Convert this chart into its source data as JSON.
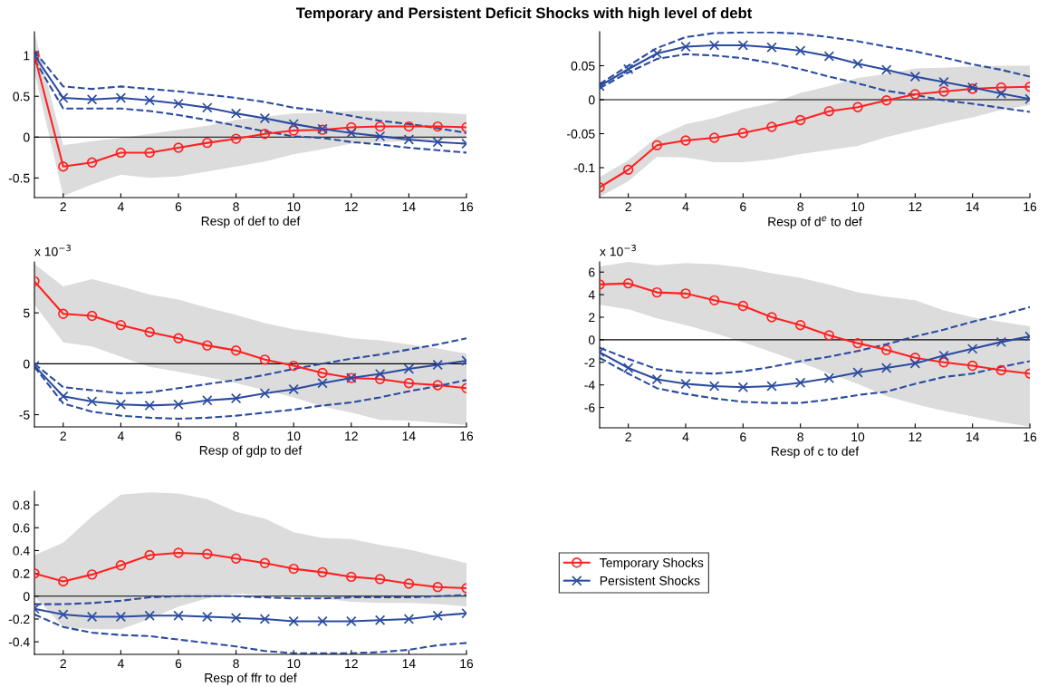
{
  "chart_data": [
    {
      "type": "line",
      "title": "Temporary and Persistent Deficit Shocks with high level of debt",
      "xlabel": "Resp of def to def",
      "x": [
        1,
        2,
        3,
        4,
        5,
        6,
        7,
        8,
        9,
        10,
        11,
        12,
        13,
        14,
        15,
        16
      ],
      "xlim": [
        1,
        16
      ],
      "xticks": [
        2,
        4,
        6,
        8,
        10,
        12,
        14,
        16
      ],
      "ylim": [
        -0.74,
        1.29
      ],
      "yticks": [
        -0.5,
        0,
        0.5,
        1
      ],
      "grid": false,
      "legend": false,
      "ref_lines": [
        {
          "axis": "y",
          "value": 0,
          "color": "#000000"
        }
      ],
      "series": [
        {
          "color": "#ff2020",
          "marker": "circle",
          "values": [
            1,
            -0.36,
            -0.31,
            -0.19,
            -0.19,
            -0.13,
            -0.07,
            -0.02,
            0.04,
            0.08,
            0.09,
            0.12,
            0.13,
            0.13,
            0.13,
            0.12
          ],
          "lower": [
            0.8,
            -0.72,
            -0.58,
            -0.46,
            -0.5,
            -0.48,
            -0.42,
            -0.36,
            -0.3,
            -0.21,
            -0.15,
            -0.08,
            -0.06,
            -0.05,
            -0.04,
            -0.02
          ],
          "upper": [
            1.28,
            -0.1,
            -0.05,
            -0.01,
            0.04,
            0.09,
            0.14,
            0.21,
            0.25,
            0.29,
            0.3,
            0.32,
            0.32,
            0.31,
            0.3,
            0.28
          ]
        },
        {
          "color": "#2b4ba0",
          "marker": "cross",
          "values": [
            1,
            0.48,
            0.46,
            0.48,
            0.45,
            0.41,
            0.36,
            0.29,
            0.23,
            0.16,
            0.1,
            0.05,
            0.01,
            -0.03,
            -0.06,
            -0.08
          ]
        },
        {
          "color": "#2b4ba0",
          "marker": "none",
          "line_style": "dashed",
          "values": [
            1.05,
            0.62,
            0.59,
            0.62,
            0.59,
            0.56,
            0.52,
            0.48,
            0.43,
            0.36,
            0.32,
            0.26,
            0.2,
            0.16,
            0.11,
            0.05
          ]
        },
        {
          "color": "#2b4ba0",
          "marker": "none",
          "line_style": "dashed",
          "values": [
            0.95,
            0.35,
            0.35,
            0.35,
            0.32,
            0.27,
            0.21,
            0.14,
            0.07,
            0.01,
            -0.01,
            -0.06,
            -0.09,
            -0.13,
            -0.16,
            -0.19
          ]
        }
      ]
    },
    {
      "type": "line",
      "xlabel": "Resp of d$^{e}$ to def",
      "x": [
        1,
        2,
        3,
        4,
        5,
        6,
        7,
        8,
        9,
        10,
        11,
        12,
        13,
        14,
        15,
        16
      ],
      "xlim": [
        1,
        16
      ],
      "xticks": [
        2,
        4,
        6,
        8,
        10,
        12,
        14,
        16
      ],
      "ylim": [
        -0.144,
        0.1
      ],
      "yticks": [
        -0.1,
        -0.05,
        0,
        0.05
      ],
      "grid": false,
      "legend": false,
      "ref_lines": [
        {
          "axis": "y",
          "value": 0,
          "color": "#000000"
        }
      ],
      "series": [
        {
          "color": "#ff2020",
          "marker": "circle",
          "values": [
            -0.129,
            -0.103,
            -0.067,
            -0.06,
            -0.056,
            -0.049,
            -0.04,
            -0.03,
            -0.017,
            -0.011,
            -0.001,
            0.008,
            0.012,
            0.016,
            0.018,
            0.019
          ],
          "lower": [
            -0.143,
            -0.12,
            -0.084,
            -0.085,
            -0.092,
            -0.092,
            -0.088,
            -0.08,
            -0.074,
            -0.068,
            -0.055,
            -0.045,
            -0.035,
            -0.026,
            -0.015,
            -0.008
          ],
          "upper": [
            -0.114,
            -0.089,
            -0.055,
            -0.036,
            -0.027,
            -0.014,
            -0.005,
            0.01,
            0.02,
            0.032,
            0.038,
            0.046,
            0.047,
            0.049,
            0.05,
            0.05
          ]
        },
        {
          "color": "#2b4ba0",
          "marker": "cross",
          "values": [
            0.02,
            0.045,
            0.068,
            0.078,
            0.08,
            0.08,
            0.077,
            0.072,
            0.064,
            0.053,
            0.044,
            0.034,
            0.026,
            0.018,
            0.009,
            0.001
          ]
        },
        {
          "color": "#2b4ba0",
          "marker": "none",
          "line_style": "dashed",
          "values": [
            0.023,
            0.05,
            0.076,
            0.092,
            0.098,
            0.099,
            0.099,
            0.097,
            0.092,
            0.086,
            0.078,
            0.071,
            0.062,
            0.052,
            0.044,
            0.034
          ]
        },
        {
          "color": "#2b4ba0",
          "marker": "none",
          "line_style": "dashed",
          "values": [
            0.017,
            0.04,
            0.06,
            0.067,
            0.065,
            0.061,
            0.054,
            0.045,
            0.034,
            0.024,
            0.013,
            0.007,
            -0.001,
            -0.006,
            -0.012,
            -0.018
          ]
        }
      ]
    },
    {
      "type": "line",
      "xlabel": "Resp of gdp to def",
      "annotations": [
        "x 10$^{−3}$"
      ],
      "x": [
        1,
        2,
        3,
        4,
        5,
        6,
        7,
        8,
        9,
        10,
        11,
        12,
        13,
        14,
        15,
        16
      ],
      "xlim": [
        1,
        16
      ],
      "xticks": [
        2,
        4,
        6,
        8,
        10,
        12,
        14,
        16
      ],
      "ylim": [
        -6.2,
        10
      ],
      "yticks": [
        -5,
        0,
        5
      ],
      "grid": false,
      "legend": false,
      "ref_lines": [
        {
          "axis": "y",
          "value": 0,
          "color": "#000000"
        }
      ],
      "series": [
        {
          "color": "#ff2020",
          "marker": "circle",
          "values": [
            8.1,
            4.9,
            4.7,
            3.8,
            3.1,
            2.5,
            1.8,
            1.3,
            0.4,
            -0.2,
            -0.9,
            -1.4,
            -1.5,
            -1.9,
            -2.1,
            -2.4
          ],
          "lower": [
            5.8,
            2.1,
            1.7,
            0.7,
            -0.3,
            -0.8,
            -1.3,
            -1.9,
            -2.6,
            -3.3,
            -4.2,
            -4.8,
            -5.5,
            -5.6,
            -5.8,
            -6.0
          ],
          "upper": [
            9.8,
            7.6,
            8.3,
            7.6,
            6.8,
            6.3,
            5.5,
            4.8,
            4.0,
            3.4,
            3.0,
            2.5,
            2.3,
            1.9,
            1.5,
            1.0
          ]
        },
        {
          "color": "#2b4ba0",
          "marker": "cross",
          "values": [
            -0.2,
            -3.2,
            -3.7,
            -4.0,
            -4.1,
            -4.0,
            -3.6,
            -3.4,
            -2.9,
            -2.5,
            -1.9,
            -1.4,
            -1.0,
            -0.5,
            -0.1,
            0.3
          ]
        },
        {
          "color": "#2b4ba0",
          "marker": "none",
          "line_style": "dashed",
          "values": [
            0,
            -2.3,
            -2.6,
            -2.9,
            -2.8,
            -2.4,
            -2.0,
            -1.6,
            -1.1,
            -0.5,
            0,
            0.5,
            0.9,
            1.4,
            1.9,
            2.5
          ]
        },
        {
          "color": "#2b4ba0",
          "marker": "none",
          "line_style": "dashed",
          "values": [
            -0.3,
            -3.9,
            -4.7,
            -5.1,
            -5.3,
            -5.4,
            -5.3,
            -5.1,
            -4.8,
            -4.5,
            -4.1,
            -3.8,
            -3.3,
            -2.7,
            -2.2,
            -1.6
          ]
        }
      ]
    },
    {
      "type": "line",
      "xlabel": "Resp of c to def",
      "annotations": [
        "x 10$^{−3}$"
      ],
      "x": [
        1,
        2,
        3,
        4,
        5,
        6,
        7,
        8,
        9,
        10,
        11,
        12,
        13,
        14,
        15,
        16
      ],
      "xlim": [
        1,
        16
      ],
      "xticks": [
        2,
        4,
        6,
        8,
        10,
        12,
        14,
        16
      ],
      "ylim": [
        -7.8,
        6.9
      ],
      "yticks": [
        -6,
        -4,
        -2,
        0,
        2,
        4,
        6
      ],
      "grid": false,
      "legend": false,
      "ref_lines": [
        {
          "axis": "y",
          "value": 0,
          "color": "#000000"
        }
      ],
      "series": [
        {
          "color": "#ff2020",
          "marker": "circle",
          "values": [
            4.9,
            5.0,
            4.2,
            4.1,
            3.5,
            3.0,
            2.0,
            1.3,
            0.4,
            -0.3,
            -0.9,
            -1.6,
            -2.0,
            -2.3,
            -2.7,
            -3.0
          ],
          "lower": [
            3.1,
            2.7,
            1.9,
            1.3,
            0.6,
            -0.2,
            -1.1,
            -2.0,
            -3.0,
            -3.9,
            -5.0,
            -5.7,
            -6.3,
            -6.8,
            -7.3,
            -7.7
          ],
          "upper": [
            6.5,
            6.9,
            6.6,
            6.8,
            6.7,
            6.4,
            5.9,
            5.5,
            4.9,
            4.2,
            3.8,
            3.5,
            2.6,
            2.0,
            1.6,
            1.2
          ]
        },
        {
          "color": "#2b4ba0",
          "marker": "cross",
          "values": [
            -1.1,
            -2.5,
            -3.5,
            -3.9,
            -4.1,
            -4.2,
            -4.1,
            -3.8,
            -3.4,
            -2.9,
            -2.5,
            -2.1,
            -1.4,
            -0.8,
            -0.2,
            0.3
          ]
        },
        {
          "color": "#2b4ba0",
          "marker": "none",
          "line_style": "dashed",
          "values": [
            -0.7,
            -1.7,
            -2.6,
            -2.9,
            -3.0,
            -2.8,
            -2.4,
            -1.9,
            -1.5,
            -1.0,
            -0.4,
            0.3,
            0.9,
            1.6,
            2.2,
            2.9
          ]
        },
        {
          "color": "#2b4ba0",
          "marker": "none",
          "line_style": "dashed",
          "values": [
            -1.6,
            -3.0,
            -4.3,
            -4.8,
            -5.2,
            -5.5,
            -5.6,
            -5.6,
            -5.3,
            -4.9,
            -4.6,
            -3.9,
            -3.3,
            -3.0,
            -2.4,
            -1.9
          ]
        }
      ]
    },
    {
      "type": "line",
      "xlabel": "Resp of ffr to def",
      "x": [
        1,
        2,
        3,
        4,
        5,
        6,
        7,
        8,
        9,
        10,
        11,
        12,
        13,
        14,
        15,
        16
      ],
      "xlim": [
        1,
        16
      ],
      "xticks": [
        2,
        4,
        6,
        8,
        10,
        12,
        14,
        16
      ],
      "ylim": [
        -0.51,
        0.92
      ],
      "yticks": [
        -0.4,
        -0.2,
        0,
        0.2,
        0.4,
        0.6,
        0.8
      ],
      "grid": false,
      "legend": "right",
      "ref_lines": [
        {
          "axis": "y",
          "value": 0,
          "color": "#000000"
        }
      ],
      "series": [
        {
          "name": "Temporary Shocks",
          "color": "#ff2020",
          "marker": "circle",
          "values": [
            0.2,
            0.13,
            0.19,
            0.27,
            0.36,
            0.38,
            0.37,
            0.33,
            0.29,
            0.24,
            0.21,
            0.17,
            0.15,
            0.11,
            0.08,
            0.07
          ],
          "lower": [
            0.0,
            -0.27,
            -0.29,
            -0.29,
            -0.2,
            -0.09,
            -0.02,
            0.02,
            0.01,
            0.0,
            -0.02,
            -0.05,
            -0.06,
            -0.06,
            -0.07,
            -0.09
          ],
          "upper": [
            0.36,
            0.47,
            0.7,
            0.89,
            0.91,
            0.9,
            0.85,
            0.74,
            0.68,
            0.56,
            0.51,
            0.5,
            0.45,
            0.41,
            0.35,
            0.29
          ]
        },
        {
          "name": "Persistent Shocks",
          "color": "#2b4ba0",
          "marker": "cross",
          "values": [
            -0.11,
            -0.16,
            -0.18,
            -0.18,
            -0.17,
            -0.17,
            -0.18,
            -0.19,
            -0.2,
            -0.22,
            -0.22,
            -0.22,
            -0.21,
            -0.2,
            -0.17,
            -0.15
          ]
        },
        {
          "color": "#2b4ba0",
          "marker": "none",
          "line_style": "dashed",
          "values": [
            -0.07,
            -0.07,
            -0.06,
            -0.04,
            -0.01,
            0.0,
            0.0,
            0.0,
            -0.01,
            -0.02,
            -0.02,
            -0.01,
            -0.01,
            -0.01,
            0.0,
            0.01
          ]
        },
        {
          "color": "#2b4ba0",
          "marker": "none",
          "line_style": "dashed",
          "values": [
            -0.16,
            -0.27,
            -0.32,
            -0.34,
            -0.35,
            -0.38,
            -0.41,
            -0.44,
            -0.48,
            -0.5,
            -0.5,
            -0.5,
            -0.49,
            -0.47,
            -0.43,
            -0.41
          ]
        }
      ]
    }
  ]
}
